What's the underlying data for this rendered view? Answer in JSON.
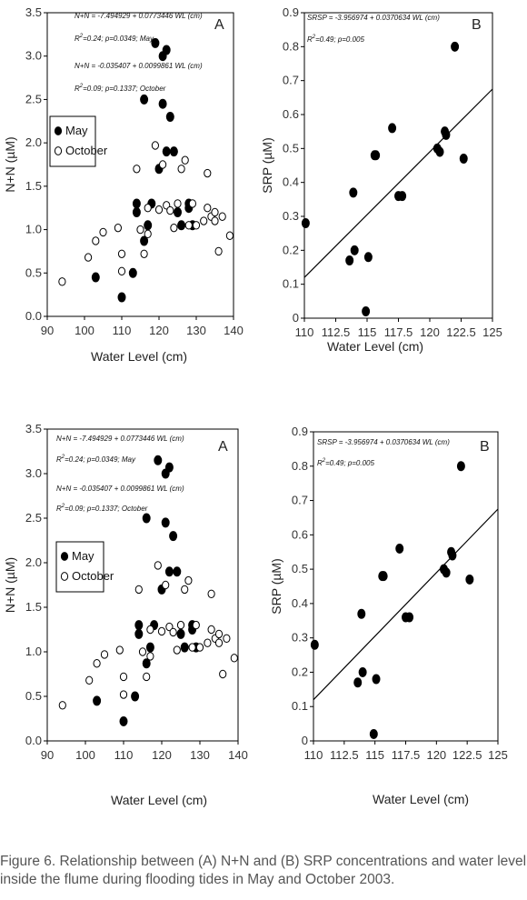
{
  "caption": "Figure 6. Relationship between (A) N+N and (B) SRP concentrations and water level inside the flume during flooding tides in May and October 2003.",
  "colors": {
    "filled": "#000000",
    "open_fill": "#ffffff",
    "axis": "#000000"
  },
  "chart_data": [
    {
      "type": "scatter",
      "panel": "A",
      "xlabel": "Water Level (cm)",
      "ylabel": "N+N (µM)",
      "xlim": [
        90,
        140
      ],
      "ylim": [
        0,
        3.5
      ],
      "xticks": [
        90,
        100,
        110,
        120,
        130,
        140
      ],
      "yticks": [
        0.0,
        0.5,
        1.0,
        1.5,
        2.0,
        2.5,
        3.0,
        3.5
      ],
      "legend": "left",
      "annotations": [
        "N+N = -7.494929 + 0.0773446 WL (cm)",
        "R²=0.24; p=0.0349; May",
        "N+N = -0.035407 + 0.0099861 WL (cm)",
        "R²=0.09; p=0.1337; October"
      ],
      "series": [
        {
          "name": "May",
          "marker": "filled",
          "x": [
            103,
            110,
            113,
            114,
            114,
            116,
            116,
            117,
            118,
            119,
            120,
            121,
            121,
            122,
            122,
            123,
            124,
            125,
            126,
            128,
            128,
            129
          ],
          "y": [
            0.45,
            0.22,
            0.5,
            1.3,
            1.2,
            0.87,
            2.5,
            1.05,
            1.3,
            3.15,
            1.7,
            3.0,
            2.45,
            3.07,
            1.9,
            2.3,
            1.9,
            1.2,
            1.05,
            1.3,
            1.25,
            1.05
          ]
        },
        {
          "name": "October",
          "marker": "open",
          "x": [
            94,
            101,
            103,
            105,
            109,
            110,
            110,
            114,
            115,
            116,
            117,
            117,
            119,
            120,
            121,
            122,
            123,
            124,
            125,
            126,
            127,
            128,
            129,
            130,
            132,
            133,
            133,
            134,
            135,
            135,
            136,
            137,
            139
          ],
          "y": [
            0.4,
            0.68,
            0.87,
            0.97,
            1.02,
            0.72,
            0.52,
            1.7,
            1.0,
            0.72,
            0.95,
            1.25,
            1.97,
            1.23,
            1.75,
            1.28,
            1.22,
            1.02,
            1.3,
            1.7,
            1.8,
            1.05,
            1.3,
            1.05,
            1.1,
            1.65,
            1.25,
            1.15,
            1.1,
            1.2,
            0.75,
            1.15,
            0.93
          ]
        }
      ]
    },
    {
      "type": "scatter",
      "panel": "B",
      "xlabel": "Water Level (cm)",
      "ylabel": "SRP (µM)",
      "xlim": [
        110,
        125
      ],
      "ylim": [
        0,
        0.9
      ],
      "xticks": [
        110,
        112.5,
        115,
        117.5,
        120,
        122.5,
        125
      ],
      "yticks": [
        0,
        0.1,
        0.2,
        0.3,
        0.4,
        0.5,
        0.6,
        0.7,
        0.8,
        0.9
      ],
      "annotations": [
        "SRSP = -3.956974 + 0.0370634 WL (cm)",
        "R²=0.49; p=0.005"
      ],
      "fit_line": {
        "x": [
          110,
          125
        ],
        "y": [
          0.12,
          0.675
        ]
      },
      "series": [
        {
          "marker": "filled",
          "x": [
            110.1,
            113.6,
            113.9,
            114.0,
            114.9,
            115.1,
            115.6,
            115.7,
            117.0,
            117.5,
            117.8,
            120.6,
            120.8,
            121.2,
            121.3,
            122.0,
            122.7
          ],
          "y": [
            0.28,
            0.17,
            0.37,
            0.2,
            0.02,
            0.18,
            0.48,
            0.48,
            0.56,
            0.36,
            0.36,
            0.5,
            0.49,
            0.55,
            0.54,
            0.8,
            0.47
          ]
        }
      ]
    }
  ]
}
